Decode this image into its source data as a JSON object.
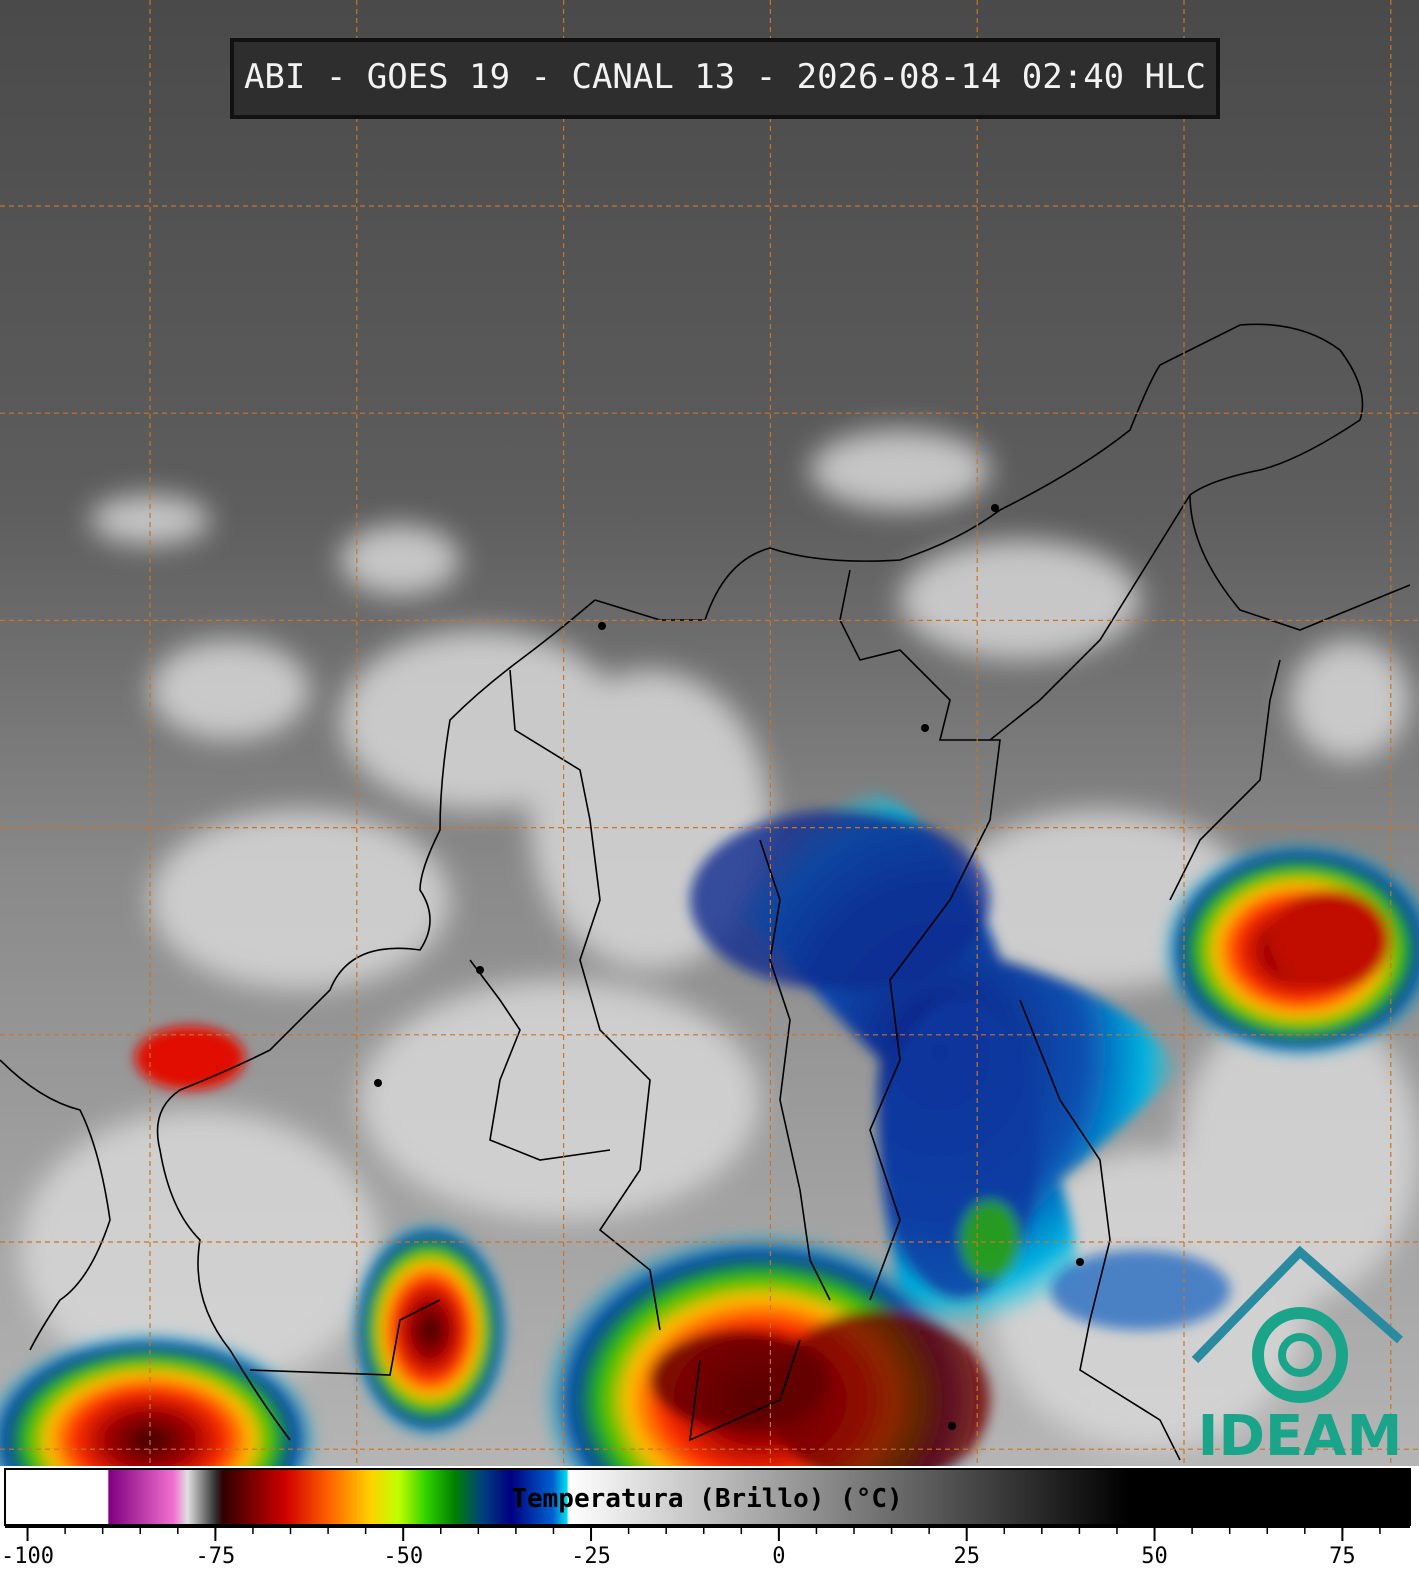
{
  "header": {
    "title": "ABI - GOES 19 - CANAL 13 - 2026-08-14 02:40 HLC"
  },
  "colorbar": {
    "label": "Temperatura (Brillo) (°C)",
    "range": [
      -103,
      84
    ],
    "ticks": [
      -100,
      -75,
      -50,
      -25,
      0,
      25,
      50,
      75
    ]
  },
  "logo": {
    "text": "IDEAM"
  }
}
